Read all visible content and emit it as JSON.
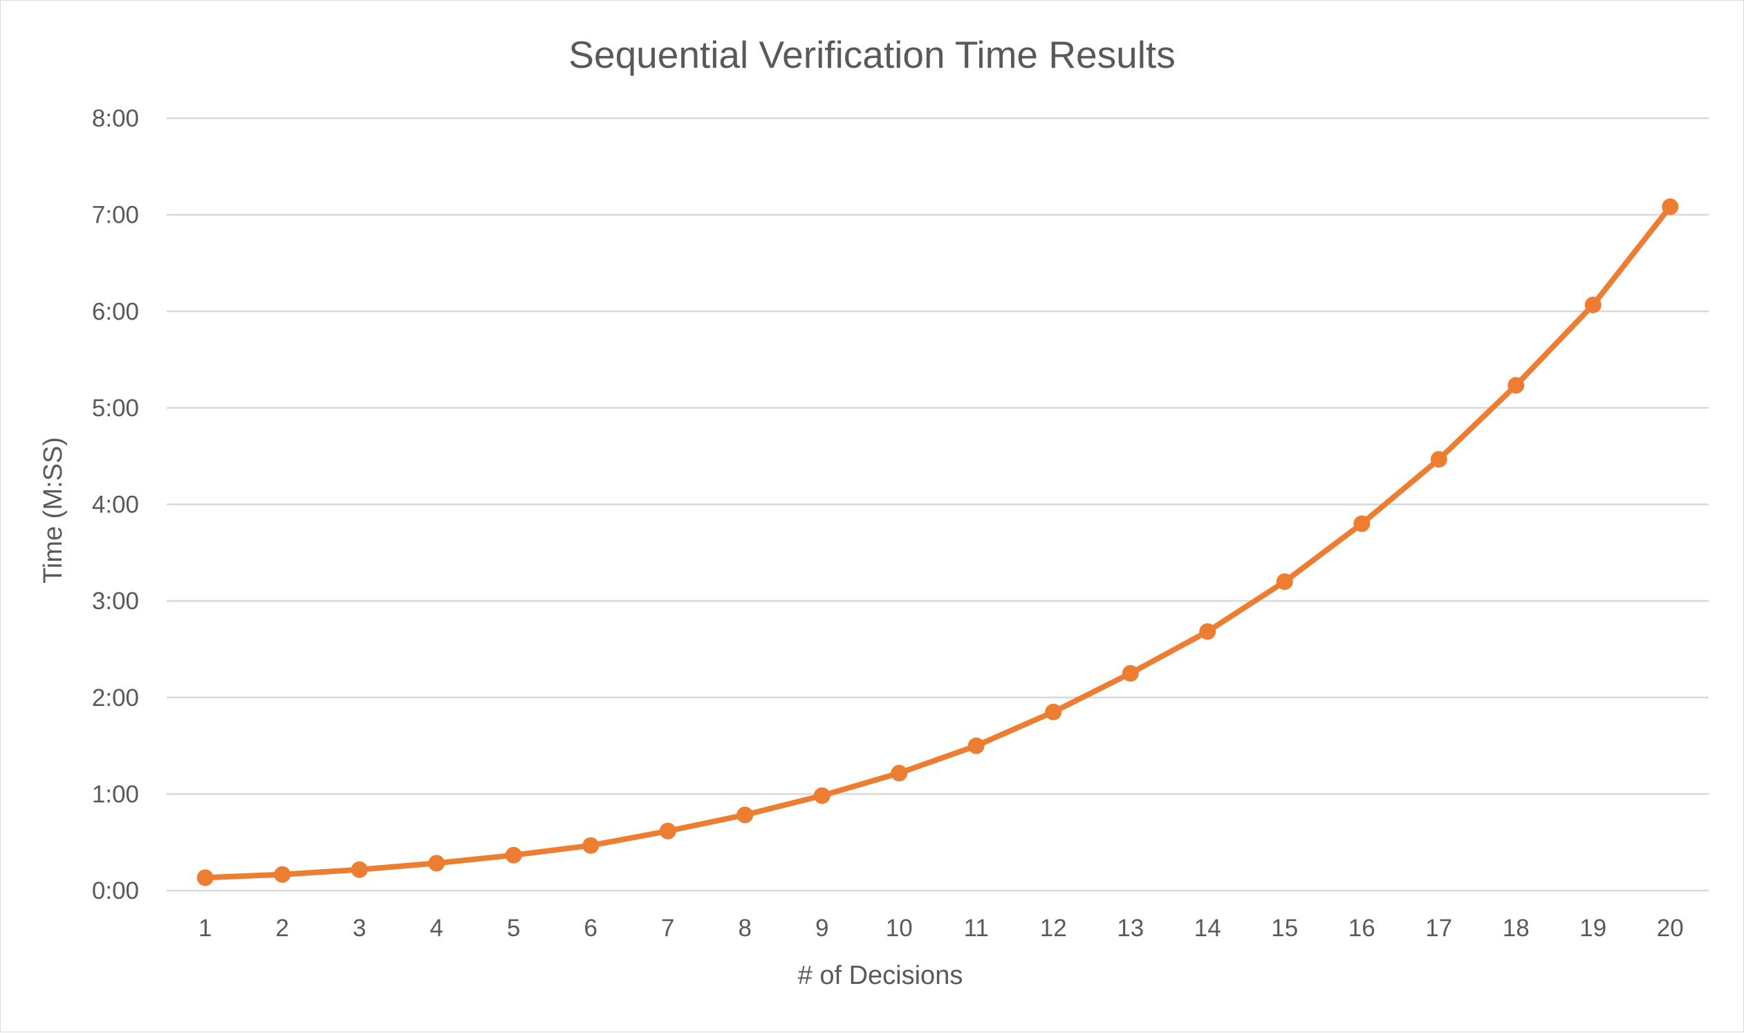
{
  "chart_data": {
    "type": "line",
    "title": "Sequential Verification Time Results",
    "xlabel": "# of Decisions",
    "ylabel": "Time (M:SS)",
    "x": [
      1,
      2,
      3,
      4,
      5,
      6,
      7,
      8,
      9,
      10,
      11,
      12,
      13,
      14,
      15,
      16,
      17,
      18,
      19,
      20
    ],
    "series": [
      {
        "values": [
          8,
          10,
          13,
          17,
          22,
          28,
          37,
          47,
          59,
          73,
          90,
          111,
          135,
          161,
          192,
          228,
          268,
          314,
          364,
          425
        ]
      }
    ],
    "y_unit": "seconds",
    "ylim": [
      0,
      480
    ],
    "y_tick_values": [
      0,
      60,
      120,
      180,
      240,
      300,
      360,
      420,
      480
    ],
    "y_tick_labels": [
      "0:00",
      "1:00",
      "2:00",
      "3:00",
      "4:00",
      "5:00",
      "6:00",
      "7:00",
      "8:00"
    ],
    "x_tick_labels": [
      "1",
      "2",
      "3",
      "4",
      "5",
      "6",
      "7",
      "8",
      "9",
      "10",
      "11",
      "12",
      "13",
      "14",
      "15",
      "16",
      "17",
      "18",
      "19",
      "20"
    ],
    "grid": true,
    "legend": "none",
    "colors": {
      "line": "#ED7D31",
      "grid": "#D9D9D9",
      "text": "#595959"
    }
  }
}
